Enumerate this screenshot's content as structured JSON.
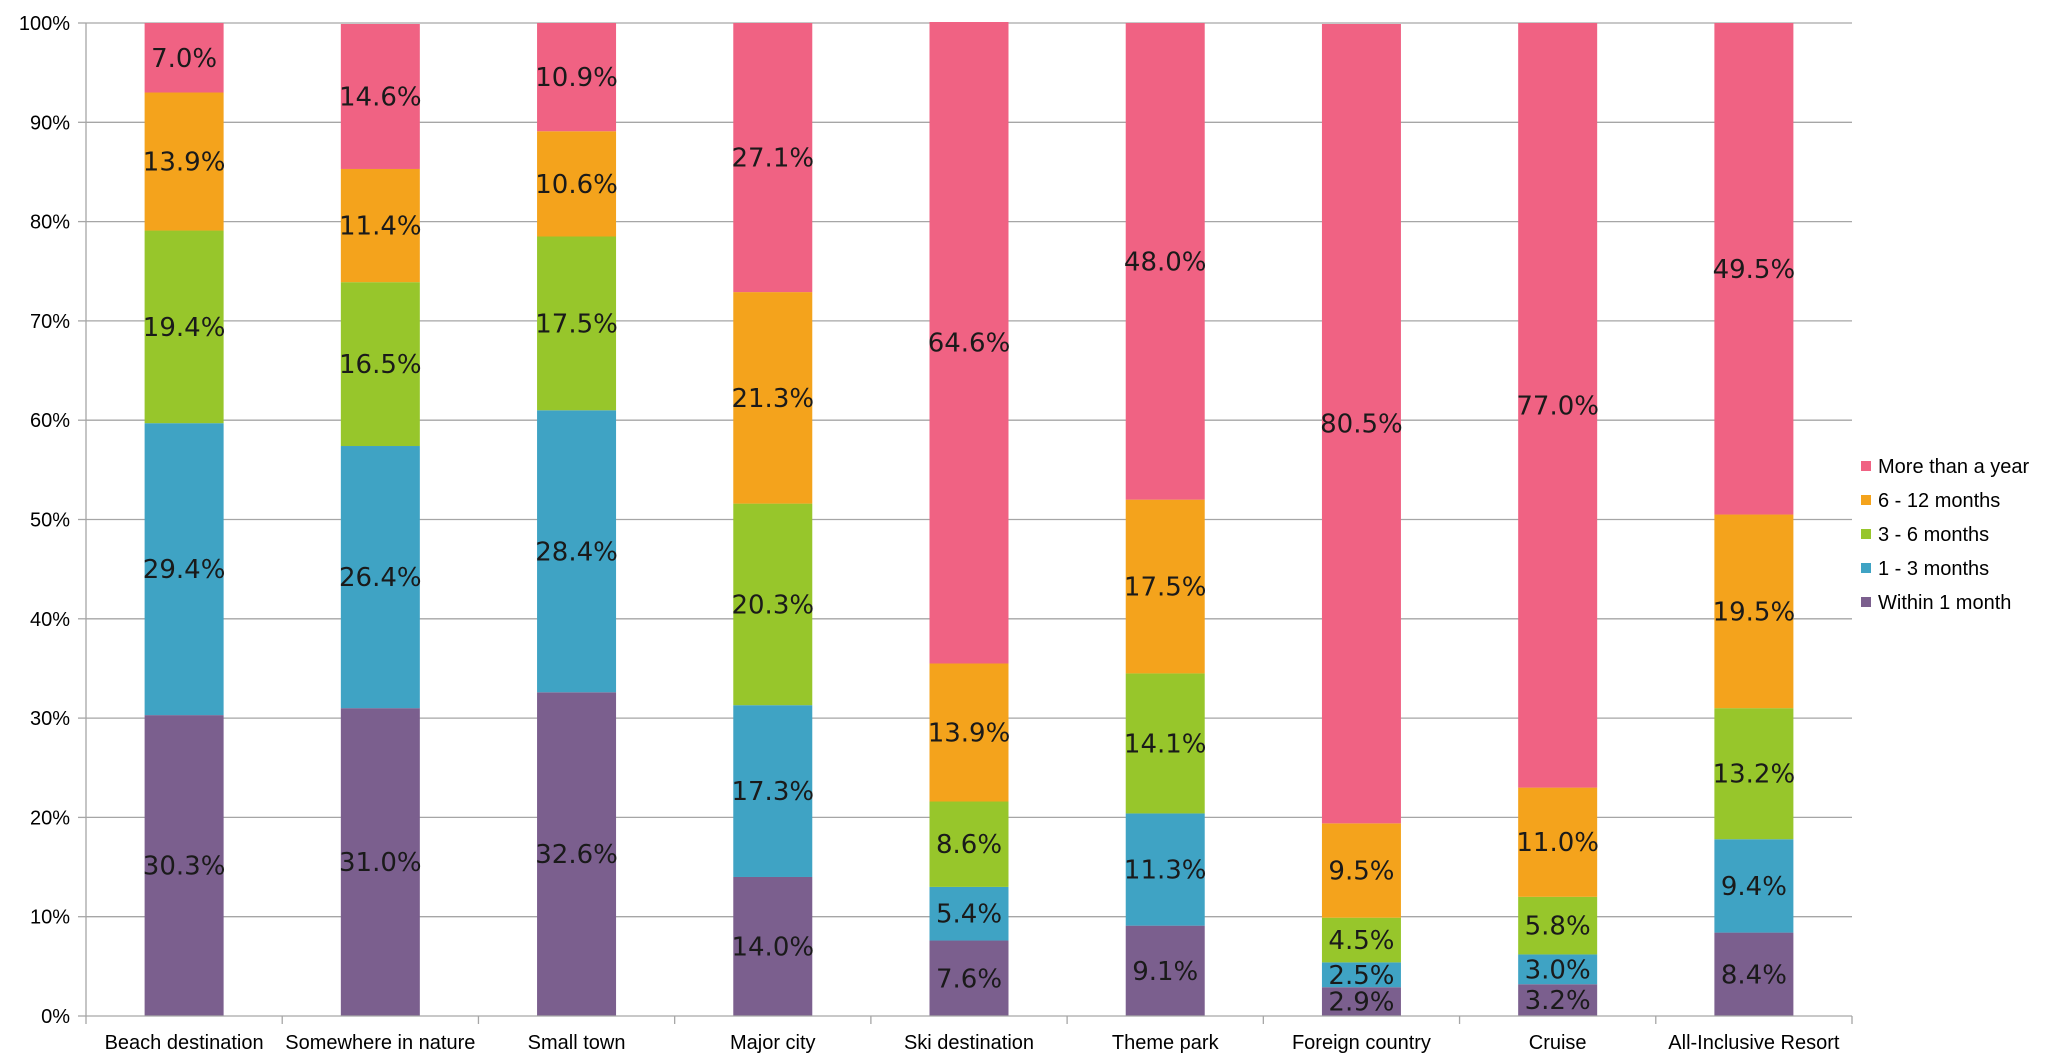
{
  "chart_data": {
    "type": "bar",
    "stacked": true,
    "percent_axis": true,
    "categories": [
      "Beach destination",
      "Somewhere in nature",
      "Small town",
      "Major city",
      "Ski destination",
      "Theme park",
      "Foreign country",
      "Cruise",
      "All-Inclusive Resort"
    ],
    "series": [
      {
        "name": "Within 1 month",
        "color": "#7b5f8e",
        "values": [
          30.3,
          31.0,
          32.6,
          14.0,
          7.6,
          9.1,
          2.9,
          3.2,
          8.4
        ],
        "labels": [
          "30.3%",
          "31.0%",
          "32.6%",
          "14.0%",
          "7.6%",
          "9.1%",
          "2.9%",
          "3.2%",
          "8.4%"
        ]
      },
      {
        "name": "1 - 3 months",
        "color": "#3fa3c4",
        "values": [
          29.4,
          26.4,
          28.4,
          17.3,
          5.4,
          11.3,
          2.5,
          3.0,
          9.4
        ],
        "labels": [
          "29.4%",
          "26.4%",
          "28.4%",
          "17.3%",
          "5.4%",
          "11.3%",
          "2.5%",
          "3.0%",
          "9.4%"
        ]
      },
      {
        "name": "3 - 6 months",
        "color": "#97c62b",
        "values": [
          19.4,
          16.5,
          17.5,
          20.3,
          8.6,
          14.1,
          4.5,
          5.8,
          13.2
        ],
        "labels": [
          "19.4%",
          "16.5%",
          "17.5%",
          "20.3%",
          "8.6%",
          "14.1%",
          "4.5%",
          "5.8%",
          "13.2%"
        ]
      },
      {
        "name": "6 - 12 months",
        "color": "#f4a31c",
        "values": [
          13.9,
          11.4,
          10.6,
          21.3,
          13.9,
          17.5,
          9.5,
          11.0,
          19.5
        ],
        "labels": [
          "13.9%",
          "11.4%",
          "10.6%",
          "21.3%",
          "13.9%",
          "17.5%",
          "9.5%",
          "11.0%",
          "19.5%"
        ]
      },
      {
        "name": "More than a year",
        "color": "#f06283",
        "values": [
          7.0,
          14.6,
          10.9,
          27.1,
          64.6,
          48.0,
          80.5,
          77.0,
          49.5
        ],
        "labels": [
          "7.0%",
          "14.6%",
          "10.9%",
          "27.1%",
          "64.6%",
          "48.0%",
          "80.5%",
          "77.0%",
          "49.5%"
        ]
      }
    ],
    "y_ticks": [
      "0%",
      "10%",
      "20%",
      "30%",
      "40%",
      "50%",
      "60%",
      "70%",
      "80%",
      "90%",
      "100%"
    ],
    "ylim": [
      0,
      100
    ],
    "grid": true,
    "legend_placement": "right",
    "legend_order": [
      "More than a year",
      "6 - 12 months",
      "3 - 6 months",
      "1 - 3 months",
      "Within 1 month"
    ],
    "gridline_color": "#a6a6a6"
  }
}
